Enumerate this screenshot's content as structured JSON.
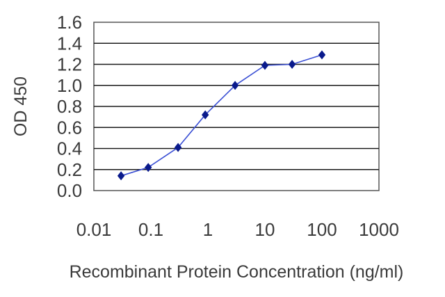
{
  "chart_data": {
    "type": "line",
    "title": "",
    "xlabel": "Recombinant Protein Concentration (ng/ml)",
    "ylabel": "OD 450",
    "xscale": "log",
    "xlim": [
      0.01,
      1000
    ],
    "ylim": [
      0.0,
      1.6
    ],
    "xticks": [
      "0.01",
      "0.1",
      "1",
      "10",
      "100",
      "1000"
    ],
    "yticks": [
      "0.0",
      "0.2",
      "0.4",
      "0.6",
      "0.8",
      "1.0",
      "1.2",
      "1.4",
      "1.6"
    ],
    "grid": "horizontal",
    "legend": "none",
    "series": [
      {
        "x": [
          0.03,
          0.09,
          0.3,
          0.9,
          3,
          10,
          30,
          100
        ],
        "y": [
          0.14,
          0.22,
          0.41,
          0.72,
          1.0,
          1.19,
          1.2,
          1.29
        ]
      }
    ],
    "colors": {
      "line": "#3a4fd4",
      "marker": "#0a1a8c",
      "grid": "#1a1a1a",
      "plot_border": "#555555",
      "plot_background": "#ffffff"
    }
  }
}
